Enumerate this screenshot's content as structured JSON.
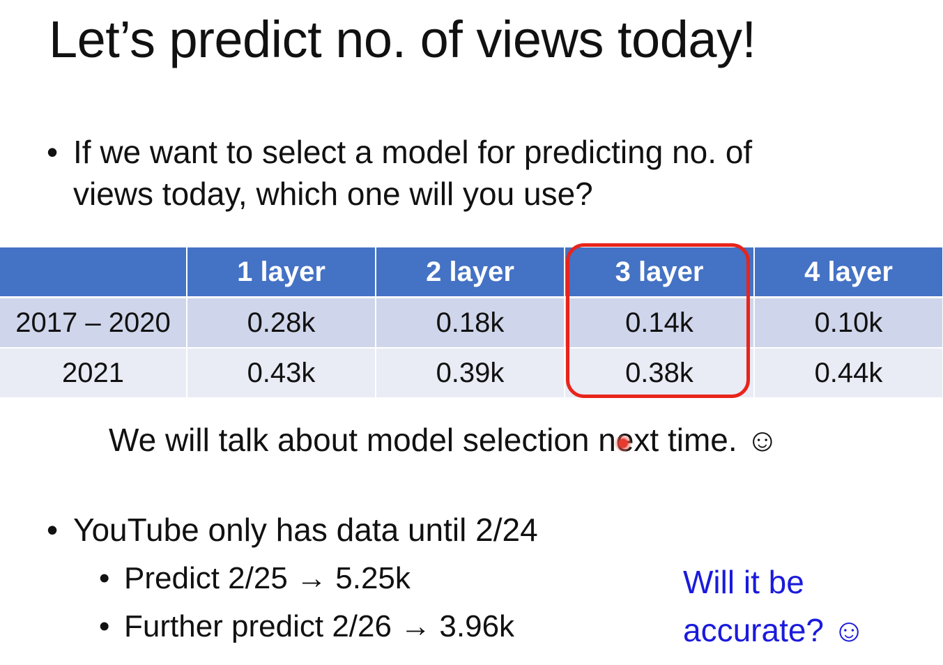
{
  "slide": {
    "title": "Let’s predict no. of views today!",
    "bullet_char": "•",
    "question_line1": "If we want to select a model for predicting no. of",
    "question_line2": "views today, which one will you use?",
    "table": {
      "headers": [
        "",
        "1 layer",
        "2 layer",
        "3 layer",
        "4 layer"
      ],
      "rows": [
        {
          "label": "2017 – 2020",
          "values": [
            "0.28k",
            "0.18k",
            "0.14k",
            "0.10k"
          ]
        },
        {
          "label": "2021",
          "values": [
            "0.43k",
            "0.39k",
            "0.38k",
            "0.44k"
          ]
        }
      ],
      "highlighted_column": "3 layer",
      "highlight_color": "#e8241b",
      "header_color": "#4472c4"
    },
    "note": "We will talk about model selection next time. ☺",
    "youtube_bullet": "YouTube only has data until 2/24",
    "predict_1": "Predict 2/25 → 5.25k",
    "predict_2": "Further predict 2/26 → 3.96k",
    "accuracy_line1": "Will it be",
    "accuracy_line2": "accurate? ☺",
    "accuracy_color": "#1a1adc"
  }
}
